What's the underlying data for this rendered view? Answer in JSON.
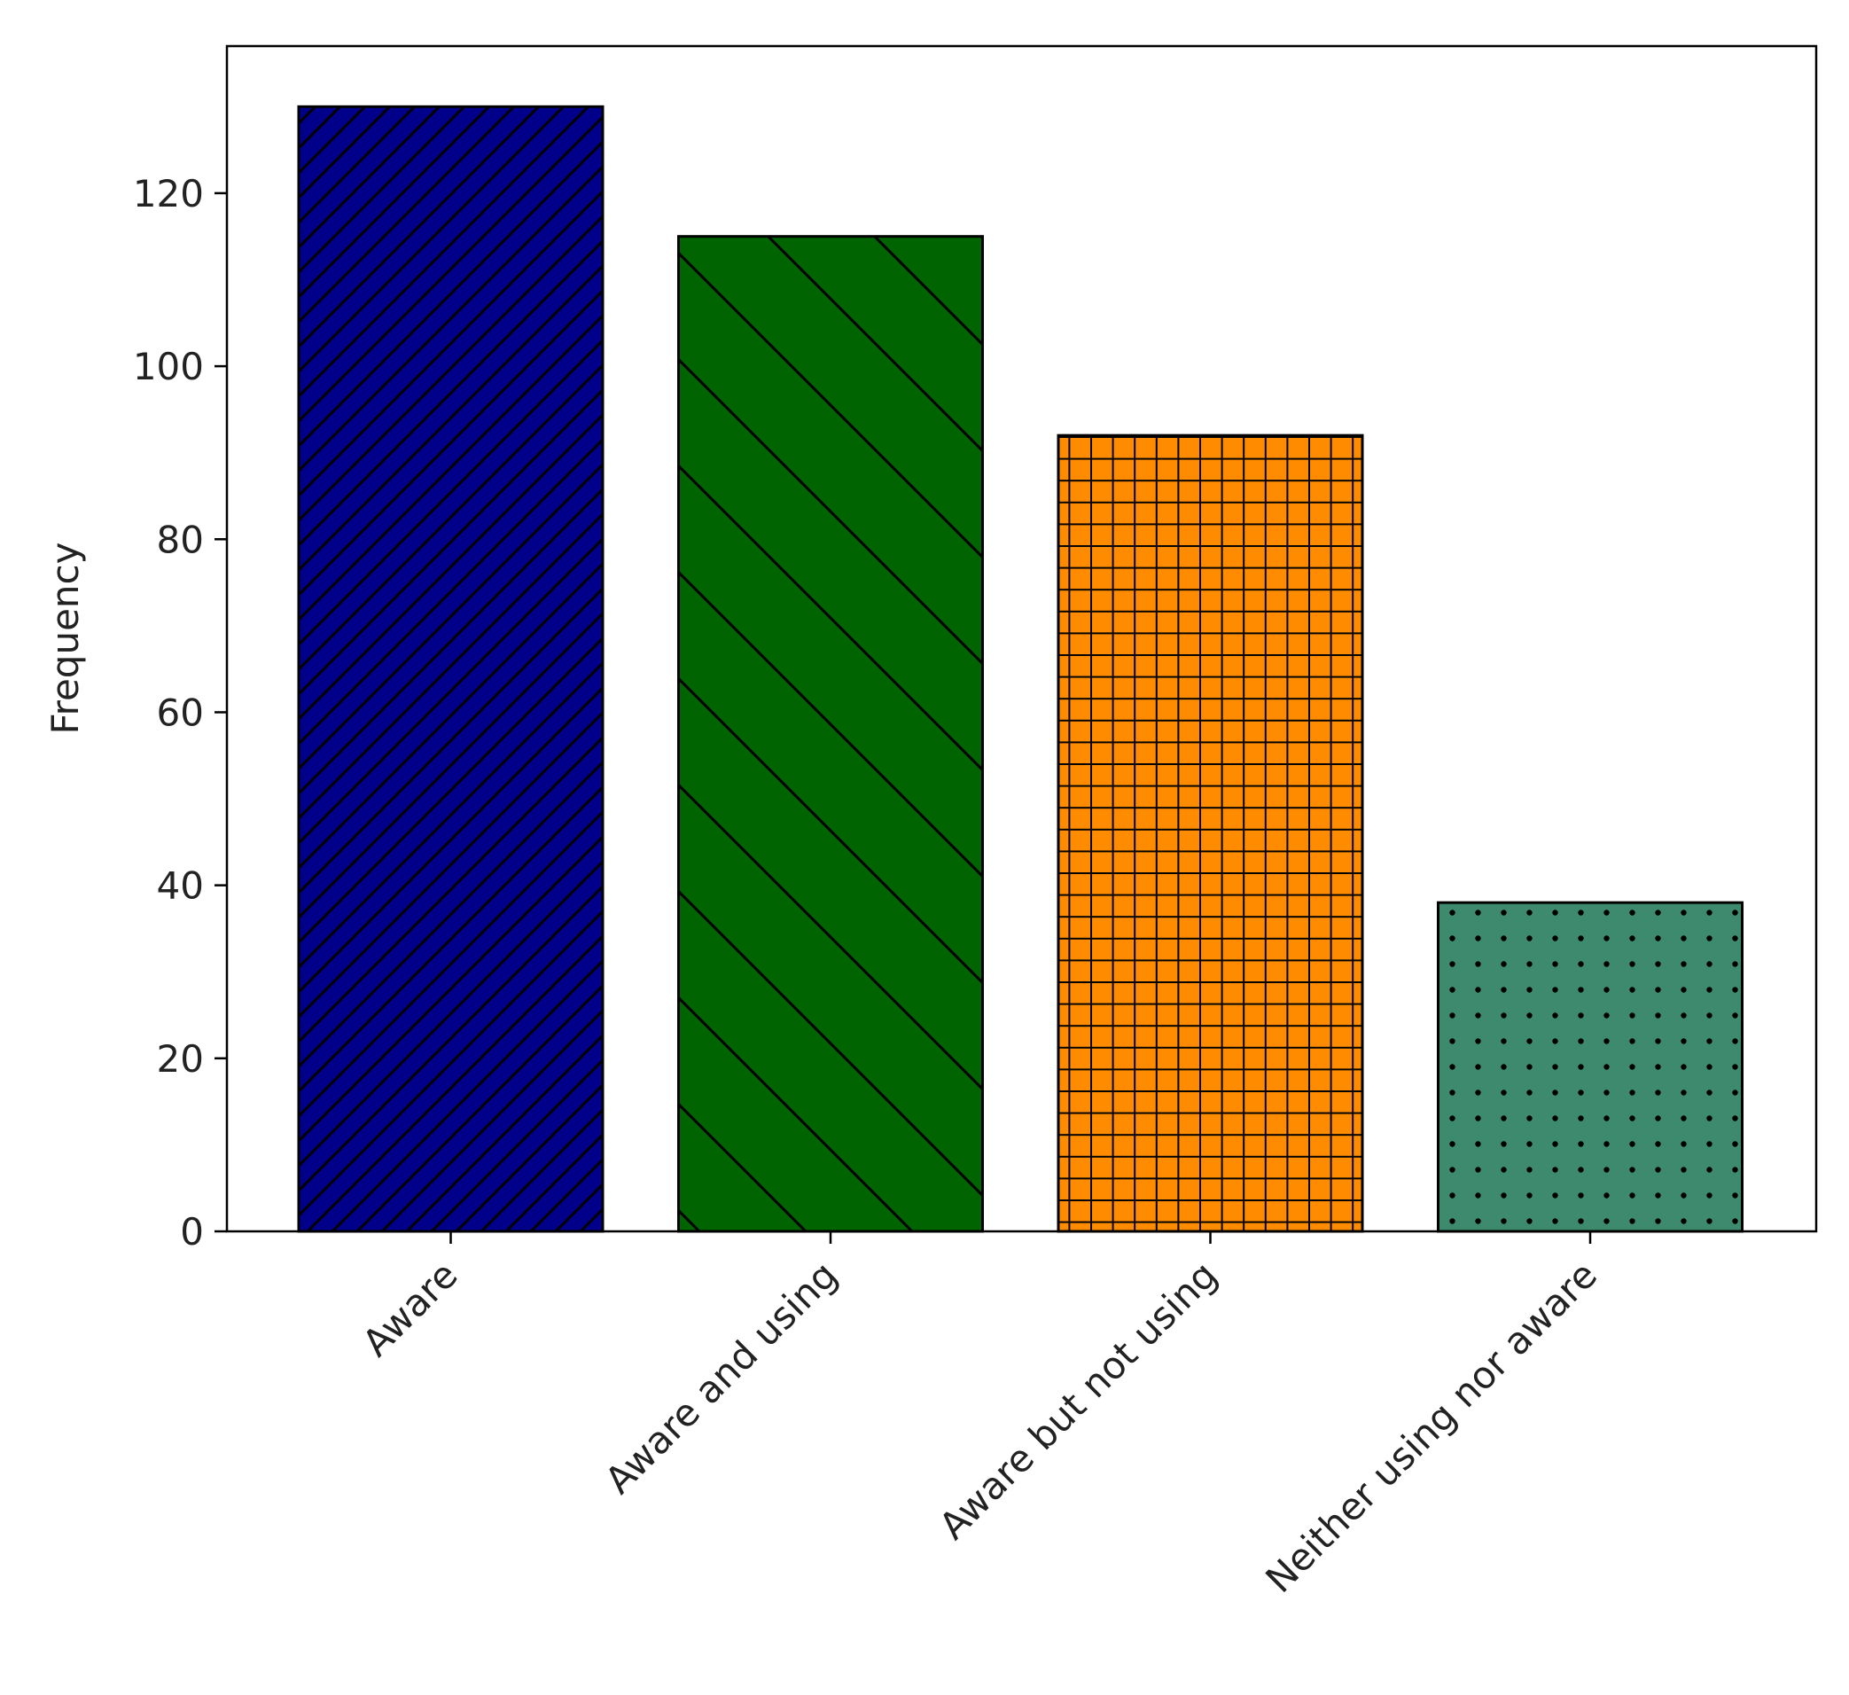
{
  "chart_data": {
    "type": "bar",
    "title": "",
    "xlabel": "",
    "ylabel": "Frequency",
    "categories": [
      "Aware",
      "Aware and using",
      "Aware but not using",
      "Neither using nor aware"
    ],
    "values": [
      130,
      115,
      92,
      38
    ],
    "ylim": [
      0,
      137
    ],
    "yticks": [
      0,
      20,
      40,
      60,
      80,
      100,
      120
    ],
    "grid": false,
    "legend": "none",
    "bar_colors": [
      "#00008b",
      "#006400",
      "#ff8c00",
      "#3e8a6e"
    ],
    "bar_patterns": [
      "forward-diagonal",
      "backward-diagonal",
      "grid",
      "dots"
    ],
    "edge_color": "#000000"
  }
}
